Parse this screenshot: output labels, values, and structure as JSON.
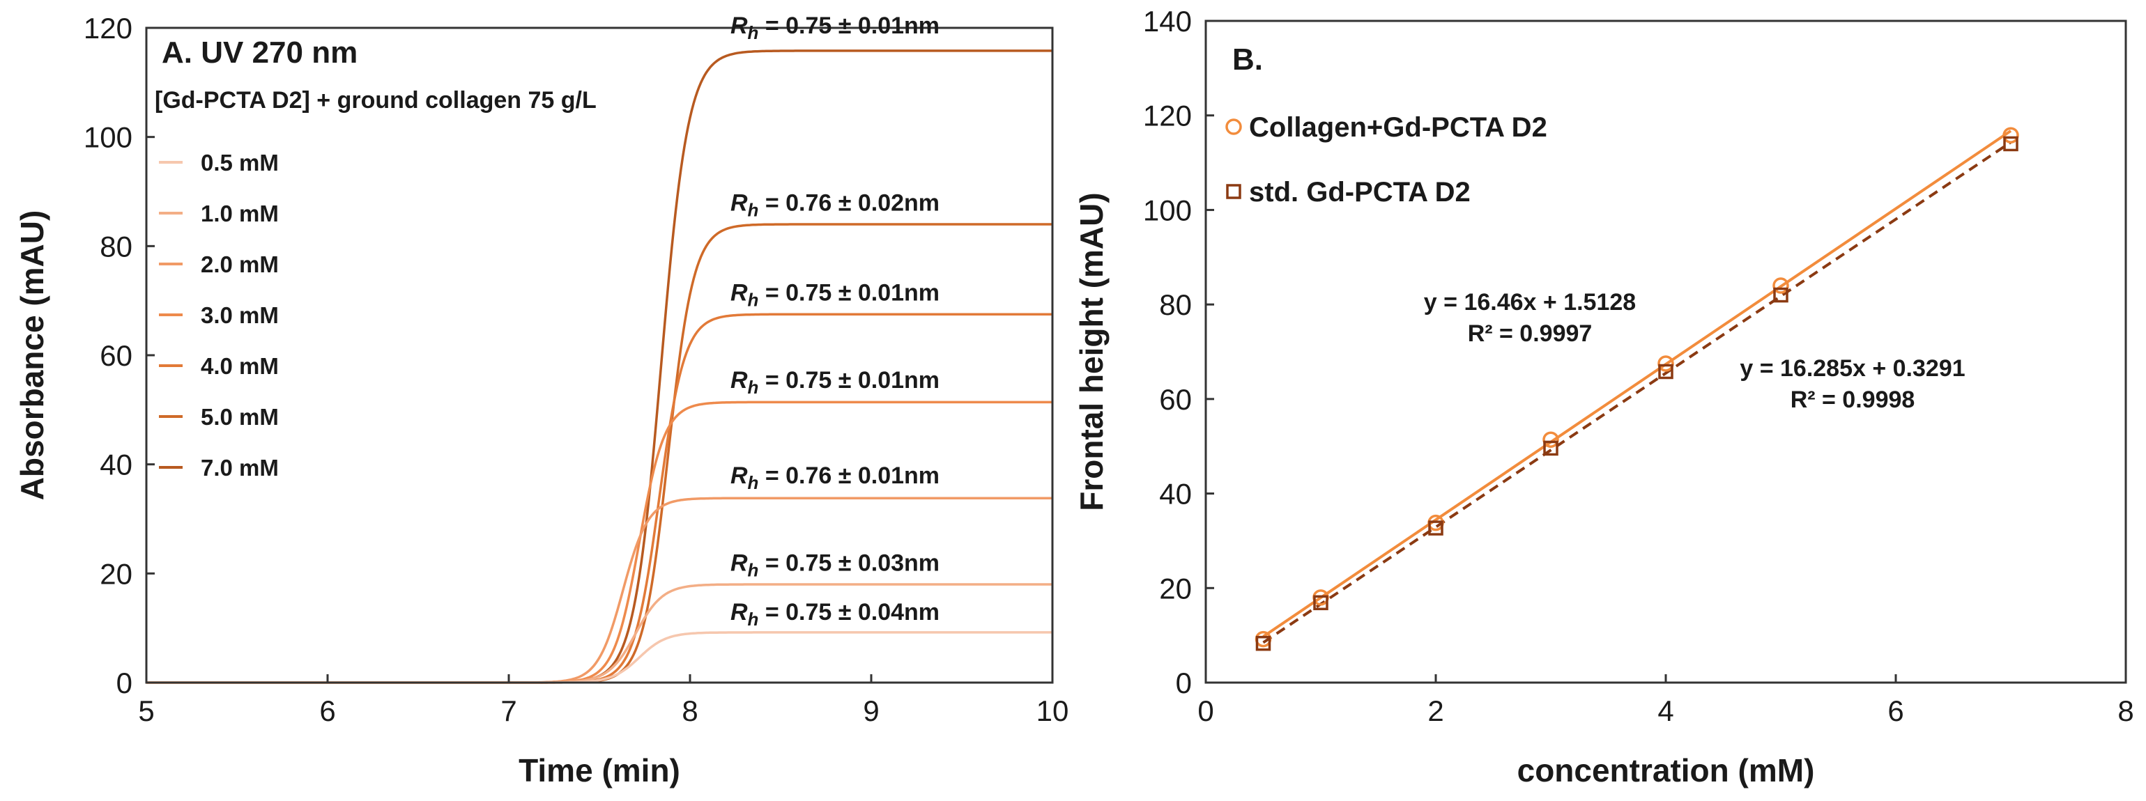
{
  "colors": {
    "axis": "#333333",
    "collagen_fit": "#F28C3C",
    "std_fit": "#8B3A12"
  },
  "chart_data": [
    {
      "type": "line",
      "panel": "A",
      "title": "A. UV 270 nm",
      "subtitle": "[Gd-PCTA D2] + ground collagen 75 g/L",
      "xlabel": "Time (min)",
      "ylabel": "Absorbance (mAU)",
      "xlim": [
        5,
        10
      ],
      "ylim": [
        0,
        120
      ],
      "x_ticks": [
        "5",
        "6",
        "7",
        "8",
        "9",
        "10"
      ],
      "y_ticks": [
        "0",
        "20",
        "40",
        "60",
        "80",
        "100",
        "120"
      ],
      "series": [
        {
          "name": "0.5 mM",
          "plateau": 9.2,
          "t_mid": 7.72,
          "width": 0.075,
          "color": "#F6C7AE"
        },
        {
          "name": "1.0 mM",
          "plateau": 18.0,
          "t_mid": 7.7,
          "width": 0.075,
          "color": "#F3AE86"
        },
        {
          "name": "2.0 mM",
          "plateau": 33.8,
          "t_mid": 7.63,
          "width": 0.07,
          "color": "#F19A66"
        },
        {
          "name": "3.0 mM",
          "plateau": 51.4,
          "t_mid": 7.72,
          "width": 0.07,
          "color": "#EE8A4C"
        },
        {
          "name": "4.0 mM",
          "plateau": 67.5,
          "t_mid": 7.83,
          "width": 0.07,
          "color": "#E27A38"
        },
        {
          "name": "5.0 mM",
          "plateau": 84.0,
          "t_mid": 7.88,
          "width": 0.07,
          "color": "#CF6A28"
        },
        {
          "name": "7.0 mM",
          "plateau": 115.8,
          "t_mid": 7.84,
          "width": 0.075,
          "color": "#B85A20"
        }
      ],
      "annotations": [
        {
          "label": "R",
          "sub": "h",
          "text": " = 0.75 ± 0.01nm",
          "x": 8.8,
          "y": 119.0
        },
        {
          "label": "R",
          "sub": "h",
          "text": " = 0.76 ± 0.02nm",
          "x": 8.8,
          "y": 86.5
        },
        {
          "label": "R",
          "sub": "h",
          "text": " = 0.75 ± 0.01nm",
          "x": 8.8,
          "y": 70.0
        },
        {
          "label": "R",
          "sub": "h",
          "text": " = 0.75 ± 0.01nm",
          "x": 8.8,
          "y": 54.0
        },
        {
          "label": "R",
          "sub": "h",
          "text": " = 0.76 ± 0.01nm",
          "x": 8.8,
          "y": 36.5
        },
        {
          "label": "R",
          "sub": "h",
          "text": " = 0.75 ± 0.03nm",
          "x": 8.8,
          "y": 20.5
        },
        {
          "label": "R",
          "sub": "h",
          "text": " = 0.75 ± 0.04nm",
          "x": 8.8,
          "y": 11.5
        }
      ],
      "legend_position": "top-left"
    },
    {
      "type": "scatter",
      "panel": "B",
      "title": "B.",
      "xlabel": "concentration (mM)",
      "ylabel": "Frontal height (mAU)",
      "xlim": [
        0,
        8
      ],
      "ylim": [
        0,
        140
      ],
      "x_ticks": [
        "0",
        "2",
        "4",
        "6",
        "8"
      ],
      "y_ticks": [
        "0",
        "20",
        "40",
        "60",
        "80",
        "100",
        "120",
        "140"
      ],
      "series": [
        {
          "name": "Collagen+Gd-PCTA D2",
          "marker": "circle",
          "x": [
            0.5,
            1.0,
            2.0,
            3.0,
            4.0,
            5.0,
            7.0
          ],
          "y": [
            9.2,
            18.0,
            33.8,
            51.4,
            67.5,
            84.0,
            115.8
          ],
          "fit": {
            "slope": 16.46,
            "intercept": 1.5128,
            "equation": "y = 16.46x + 1.5128",
            "r2": "R² = 0.9997",
            "style": "solid"
          }
        },
        {
          "name": "std. Gd-PCTA D2",
          "marker": "square",
          "x": [
            0.5,
            1.0,
            2.0,
            3.0,
            4.0,
            5.0,
            7.0
          ],
          "y": [
            8.3,
            16.9,
            32.7,
            49.6,
            65.8,
            82.0,
            114.0
          ],
          "fit": {
            "slope": 16.285,
            "intercept": 0.3291,
            "equation": "y = 16.285x + 0.3291",
            "r2": "R² = 0.9998",
            "style": "dashed"
          }
        }
      ],
      "legend_position": "top-left"
    }
  ]
}
